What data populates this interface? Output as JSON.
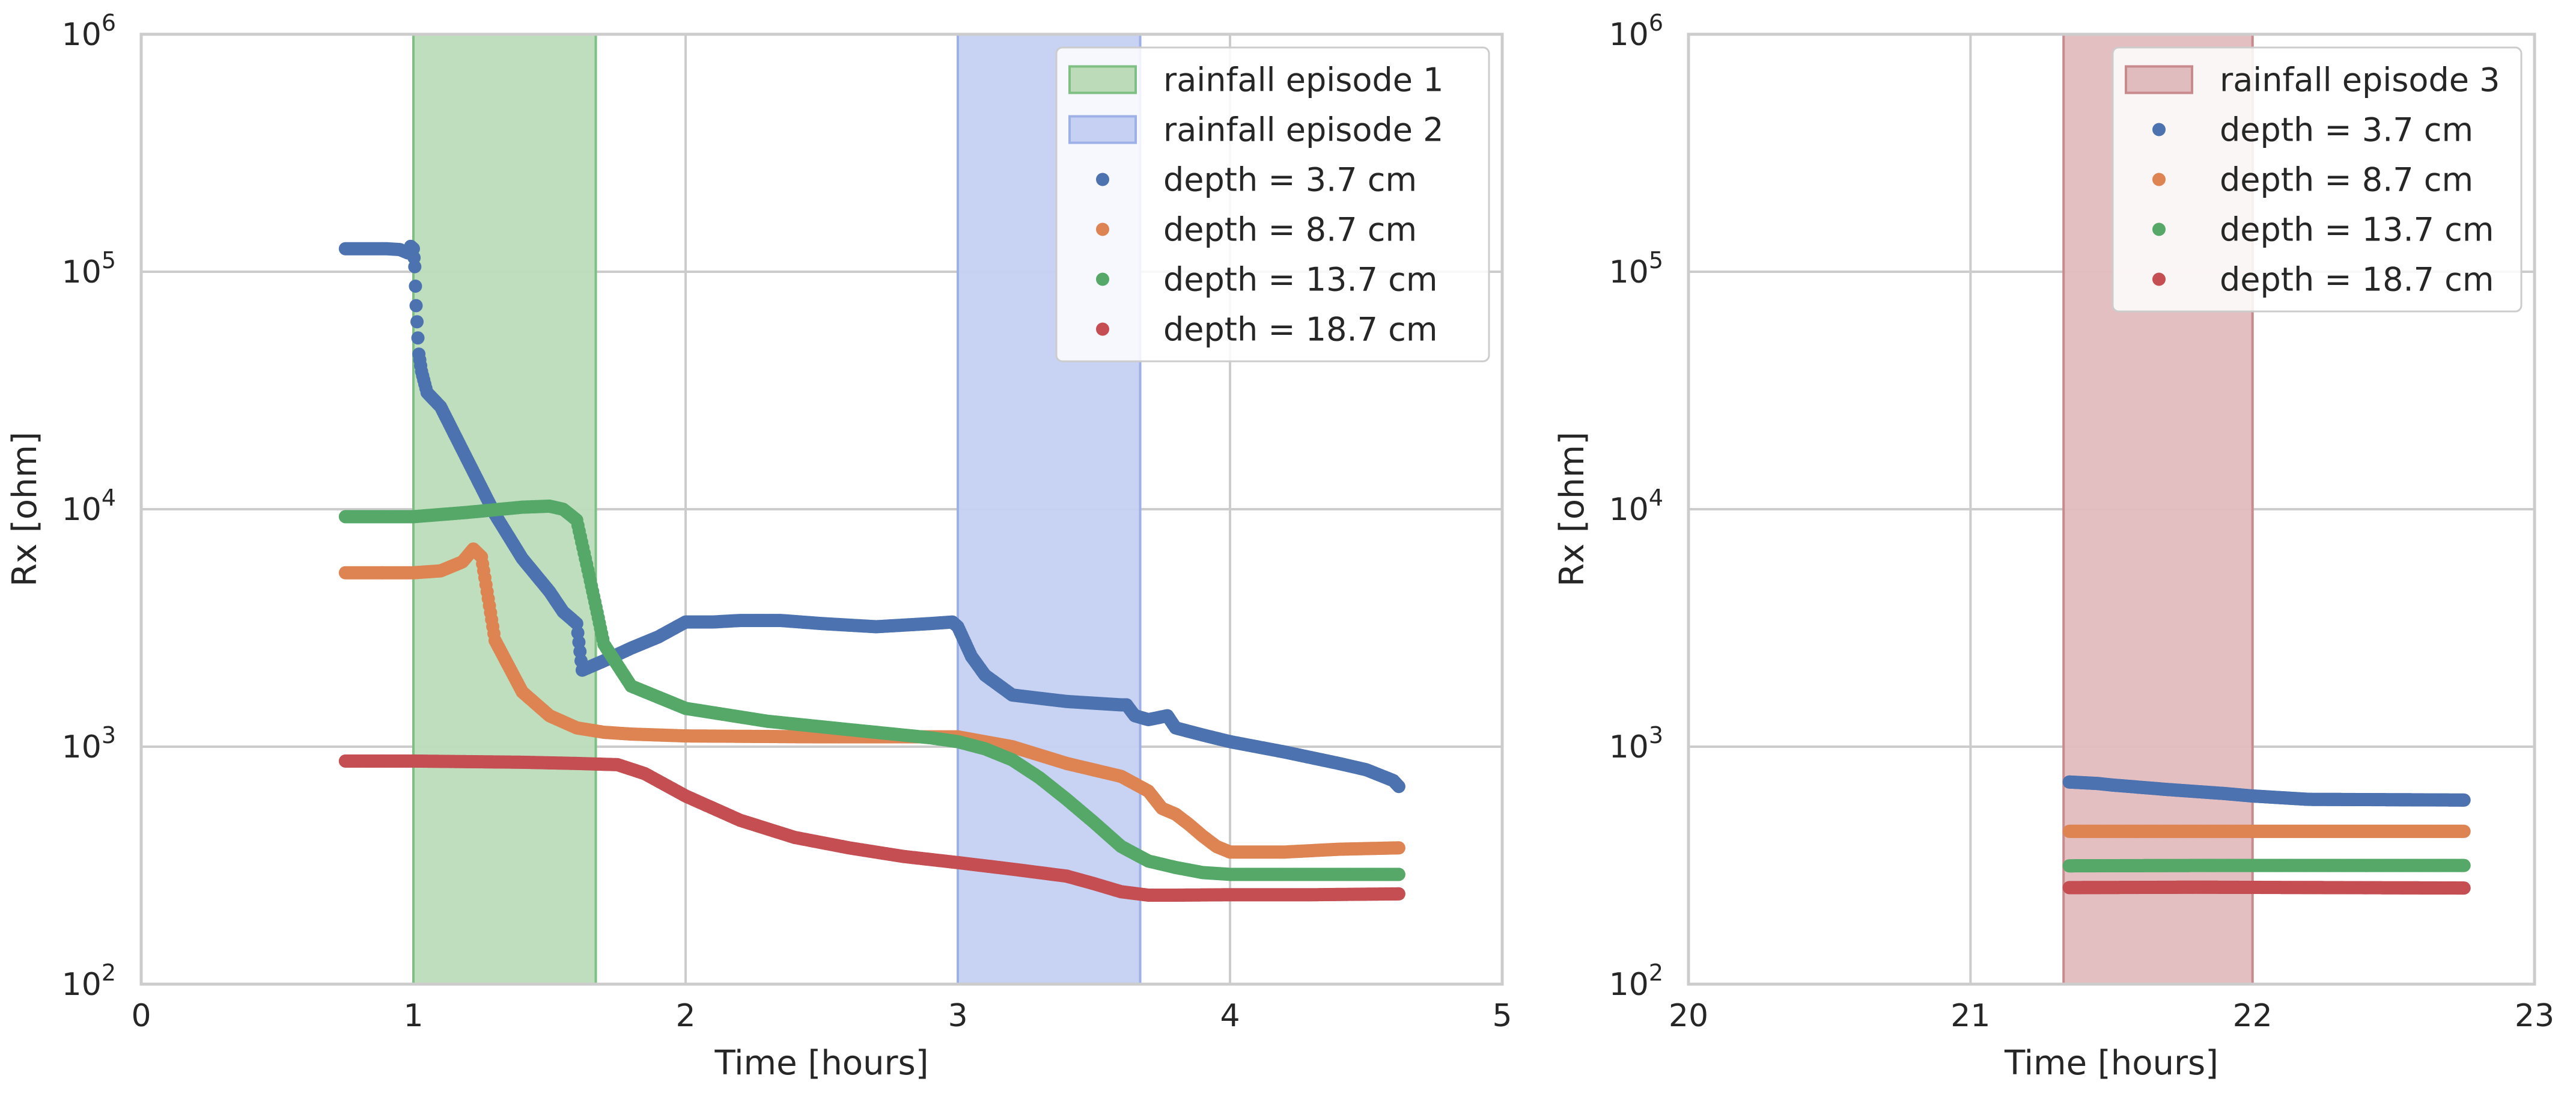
{
  "chart_data": [
    {
      "type": "scatter",
      "xlabel": "Time [hours]",
      "ylabel": "Rx [ohm]",
      "xlim": [
        0,
        5
      ],
      "ylim": [
        100,
        1000000
      ],
      "yscale": "log",
      "grid": true,
      "legend_position": "top-right",
      "x_ticks": [
        0,
        1,
        2,
        3,
        4,
        5
      ],
      "x_tick_labels": [
        "0",
        "1",
        "2",
        "3",
        "4",
        "5"
      ],
      "y_ticks": [
        100,
        1000,
        10000,
        100000,
        1000000
      ],
      "y_tick_labels": [
        {
          "base": "10",
          "exp": "2"
        },
        {
          "base": "10",
          "exp": "3"
        },
        {
          "base": "10",
          "exp": "4"
        },
        {
          "base": "10",
          "exp": "5"
        },
        {
          "base": "10",
          "exp": "6"
        }
      ],
      "spans": [
        {
          "name": "rainfall episode 1",
          "x_start": 1.0,
          "x_end": 1.67,
          "color": "#55a868",
          "fill": "#bcdcb9",
          "edge": "#7fbf84"
        },
        {
          "name": "rainfall episode 2",
          "x_start": 3.0,
          "x_end": 3.67,
          "color": "#4c72b0",
          "fill": "#c5d0f2",
          "edge": "#9db0e8"
        }
      ],
      "series": [
        {
          "name": "depth = 3.7 cm",
          "color": "#4c72b0",
          "x": [
            0.75,
            0.9,
            0.95,
            0.98,
            0.99,
            1.0,
            1.005,
            1.01,
            1.02,
            1.03,
            1.05,
            1.1,
            1.2,
            1.3,
            1.4,
            1.5,
            1.55,
            1.6,
            1.62,
            1.7,
            1.8,
            1.9,
            2.0,
            2.1,
            2.2,
            2.35,
            2.5,
            2.7,
            2.9,
            2.98,
            3.0,
            3.05,
            3.1,
            3.2,
            3.4,
            3.6,
            3.62,
            3.65,
            3.7,
            3.77,
            3.8,
            3.9,
            4.0,
            4.2,
            4.4,
            4.5,
            4.6,
            4.62
          ],
          "y": [
            125000,
            125000,
            124000,
            120000,
            128000,
            125000,
            105000,
            72000,
            45000,
            38000,
            31000,
            27000,
            16000,
            9500,
            6200,
            4500,
            3700,
            3300,
            2100,
            2300,
            2600,
            2900,
            3350,
            3350,
            3400,
            3400,
            3300,
            3200,
            3300,
            3350,
            3200,
            2400,
            2000,
            1650,
            1550,
            1500,
            1500,
            1350,
            1300,
            1350,
            1200,
            1120,
            1050,
            950,
            850,
            800,
            720,
            680
          ]
        },
        {
          "name": "depth = 8.7 cm",
          "color": "#dd8452",
          "x": [
            0.75,
            1.0,
            1.1,
            1.18,
            1.22,
            1.25,
            1.3,
            1.4,
            1.5,
            1.6,
            1.7,
            1.8,
            2.0,
            2.5,
            3.0,
            3.2,
            3.4,
            3.6,
            3.7,
            3.75,
            3.8,
            3.85,
            3.9,
            3.95,
            4.0,
            4.2,
            4.4,
            4.62
          ],
          "y": [
            5400,
            5400,
            5500,
            6000,
            6800,
            6300,
            2800,
            1700,
            1350,
            1200,
            1150,
            1130,
            1110,
            1100,
            1100,
            1000,
            850,
            750,
            650,
            550,
            520,
            470,
            420,
            380,
            360,
            360,
            370,
            375
          ]
        },
        {
          "name": "depth = 13.7 cm",
          "color": "#55a868",
          "x": [
            0.75,
            1.0,
            1.2,
            1.4,
            1.5,
            1.55,
            1.6,
            1.65,
            1.7,
            1.8,
            2.0,
            2.3,
            2.6,
            2.9,
            3.0,
            3.1,
            3.2,
            3.3,
            3.4,
            3.5,
            3.6,
            3.7,
            3.8,
            3.9,
            4.0,
            4.4,
            4.62
          ],
          "y": [
            9300,
            9300,
            9700,
            10200,
            10300,
            10000,
            9000,
            5000,
            2700,
            1800,
            1450,
            1280,
            1180,
            1090,
            1050,
            980,
            880,
            740,
            600,
            480,
            380,
            330,
            310,
            295,
            290,
            290,
            290
          ]
        },
        {
          "name": "depth = 18.7 cm",
          "color": "#c44e52",
          "x": [
            0.75,
            1.0,
            1.2,
            1.4,
            1.6,
            1.75,
            1.85,
            2.0,
            2.2,
            2.4,
            2.6,
            2.8,
            3.0,
            3.2,
            3.4,
            3.5,
            3.6,
            3.7,
            3.8,
            4.0,
            4.3,
            4.62
          ],
          "y": [
            870,
            870,
            865,
            860,
            850,
            840,
            770,
            620,
            490,
            415,
            375,
            345,
            325,
            305,
            285,
            265,
            245,
            237,
            237,
            238,
            238,
            240
          ]
        }
      ],
      "legend": [
        "rainfall episode 1",
        "rainfall episode 2",
        "depth = 3.7 cm",
        "depth = 8.7 cm",
        "depth = 13.7 cm",
        "depth = 18.7 cm"
      ]
    },
    {
      "type": "scatter",
      "xlabel": "Time [hours]",
      "ylabel": "Rx [ohm]",
      "xlim": [
        20,
        23
      ],
      "ylim": [
        100,
        1000000
      ],
      "yscale": "log",
      "grid": true,
      "legend_position": "top-right",
      "x_ticks": [
        20,
        21,
        22,
        23
      ],
      "x_tick_labels": [
        "20",
        "21",
        "22",
        "23"
      ],
      "y_ticks": [
        100,
        1000,
        10000,
        100000,
        1000000
      ],
      "y_tick_labels": [
        {
          "base": "10",
          "exp": "2"
        },
        {
          "base": "10",
          "exp": "3"
        },
        {
          "base": "10",
          "exp": "4"
        },
        {
          "base": "10",
          "exp": "5"
        },
        {
          "base": "10",
          "exp": "6"
        }
      ],
      "spans": [
        {
          "name": "rainfall episode 3",
          "x_start": 21.33,
          "x_end": 22.0,
          "color": "#c44e52",
          "fill": "#e1bcbf",
          "edge": "#c98a8e"
        }
      ],
      "series": [
        {
          "name": "depth = 3.7 cm",
          "color": "#4c72b0",
          "x": [
            21.35,
            21.45,
            21.5,
            21.7,
            21.9,
            22.0,
            22.2,
            22.5,
            22.75
          ],
          "y": [
            710,
            700,
            690,
            660,
            635,
            620,
            600,
            598,
            596
          ]
        },
        {
          "name": "depth = 8.7 cm",
          "color": "#dd8452",
          "x": [
            21.35,
            21.8,
            22.3,
            22.75
          ],
          "y": [
            440,
            440,
            440,
            440
          ]
        },
        {
          "name": "depth = 13.7 cm",
          "color": "#55a868",
          "x": [
            21.35,
            21.8,
            22.3,
            22.75
          ],
          "y": [
            315,
            316,
            316,
            316
          ]
        },
        {
          "name": "depth = 18.7 cm",
          "color": "#c44e52",
          "x": [
            21.35,
            21.8,
            22.3,
            22.75
          ],
          "y": [
            255,
            256,
            255,
            254
          ]
        }
      ],
      "legend": [
        "rainfall episode 3",
        "depth = 3.7 cm",
        "depth = 8.7 cm",
        "depth = 13.7 cm",
        "depth = 18.7 cm"
      ]
    }
  ]
}
